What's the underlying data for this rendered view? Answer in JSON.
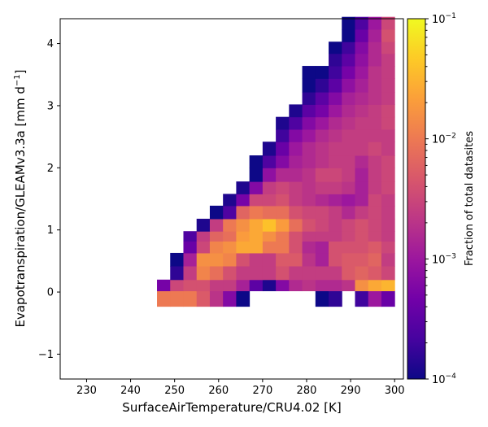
{
  "chart_data": {
    "type": "heatmap",
    "xlabel": "SurfaceAirTemperature/CRU4.02 [K]",
    "ylabel": "Evapotranspiration/GLEAMv3.3a [mm d$^{-1}$]",
    "ylabel_parts": {
      "main": "Evapotranspiration/GLEAMv3.3a [mm d",
      "sup": "−1",
      "end": "]"
    },
    "xlim": [
      224.0,
      302.0
    ],
    "ylim": [
      -1.4,
      4.4
    ],
    "xticks": [
      230,
      240,
      250,
      260,
      270,
      280,
      290,
      300
    ],
    "yticks": [
      -1,
      0,
      1,
      2,
      3,
      4
    ],
    "grid": false,
    "x_bin_start": 246.0,
    "x_bin_width": 3.0,
    "y_bins": [
      -0.23,
      0.02,
      0.2,
      0.42,
      0.63,
      0.82,
      0.98,
      1.18,
      1.39,
      1.58,
      1.78,
      2.0,
      2.2,
      2.42,
      2.62,
      2.82,
      3.02,
      3.22,
      3.44,
      3.64,
      3.84,
      4.03,
      4.23,
      4.43
    ],
    "log10_values": [
      [
        -2.0,
        -2.0,
        -2.0,
        -2.3,
        -2.7,
        -3.2,
        -4.0,
        null,
        null,
        null,
        null,
        null,
        -4.0,
        -3.8,
        null,
        -3.7,
        -3.0,
        -3.4
      ],
      [
        -3.3,
        -2.5,
        -2.4,
        -2.4,
        -2.6,
        -2.6,
        -2.9,
        -3.5,
        -3.9,
        -3.2,
        -2.8,
        -2.7,
        -2.8,
        -2.8,
        -2.7,
        -1.8,
        -1.6,
        -1.5
      ],
      [
        null,
        -3.8,
        -2.6,
        -1.9,
        -2.1,
        -2.4,
        -2.6,
        -2.6,
        -2.6,
        -2.4,
        -2.6,
        -2.6,
        -2.6,
        -2.6,
        -2.3,
        -2.2,
        -2.3,
        -2.5
      ],
      [
        null,
        -4.0,
        -2.9,
        -1.8,
        -1.8,
        -1.9,
        -2.4,
        -2.6,
        -2.6,
        -2.3,
        -2.3,
        -2.7,
        -2.9,
        -2.4,
        -2.3,
        -2.3,
        -2.2,
        -2.6
      ],
      [
        null,
        null,
        -3.4,
        -2.5,
        -1.9,
        -1.8,
        -1.6,
        -1.6,
        -2.0,
        -2.0,
        -2.4,
        -2.8,
        -2.9,
        -2.4,
        -2.4,
        -2.4,
        -2.3,
        -2.5
      ],
      [
        null,
        null,
        -3.6,
        -2.6,
        -2.2,
        -2.1,
        -1.7,
        -1.6,
        -1.8,
        -2.0,
        -2.4,
        -2.6,
        -2.6,
        -2.6,
        -2.5,
        -2.4,
        -2.5,
        -2.6
      ],
      [
        null,
        null,
        null,
        -3.9,
        -2.6,
        -2.0,
        -1.8,
        -1.6,
        -1.4,
        -1.7,
        -2.1,
        -2.4,
        -2.5,
        -2.6,
        -2.5,
        -2.4,
        -2.5,
        -2.6
      ],
      [
        null,
        null,
        null,
        null,
        -4.0,
        -3.6,
        -2.2,
        -2.0,
        -2.1,
        -2.1,
        -2.4,
        -2.5,
        -2.5,
        -2.6,
        -2.8,
        -2.6,
        -2.5,
        -2.6
      ],
      [
        null,
        null,
        null,
        null,
        null,
        -3.9,
        -3.3,
        -2.5,
        -2.5,
        -2.4,
        -2.6,
        -2.7,
        -2.8,
        -2.9,
        -3.0,
        -2.9,
        -2.5,
        -2.6
      ],
      [
        null,
        null,
        null,
        null,
        null,
        null,
        -3.9,
        -3.2,
        -2.6,
        -2.5,
        -2.6,
        -2.7,
        -2.6,
        -2.6,
        -2.7,
        -2.9,
        -2.6,
        -2.5
      ],
      [
        null,
        null,
        null,
        null,
        null,
        null,
        null,
        -4.0,
        -3.1,
        -2.8,
        -2.8,
        -2.7,
        -2.5,
        -2.5,
        -2.6,
        -2.9,
        -2.6,
        -2.5
      ],
      [
        null,
        null,
        null,
        null,
        null,
        null,
        null,
        -4.0,
        -3.6,
        -3.2,
        -2.9,
        -2.8,
        -2.7,
        -2.6,
        -2.6,
        -2.8,
        -2.6,
        -2.5
      ],
      [
        null,
        null,
        null,
        null,
        null,
        null,
        null,
        null,
        -3.9,
        -3.4,
        -3.0,
        -2.8,
        -2.7,
        -2.6,
        -2.6,
        -2.6,
        -2.5,
        -2.6
      ],
      [
        null,
        null,
        null,
        null,
        null,
        null,
        null,
        null,
        null,
        -3.7,
        -3.2,
        -3.0,
        -2.8,
        -2.7,
        -2.6,
        -2.6,
        -2.6,
        -2.6
      ],
      [
        null,
        null,
        null,
        null,
        null,
        null,
        null,
        null,
        null,
        -3.9,
        -3.6,
        -3.2,
        -3.0,
        -2.8,
        -2.7,
        -2.6,
        -2.6,
        -2.5
      ],
      [
        null,
        null,
        null,
        null,
        null,
        null,
        null,
        null,
        null,
        null,
        -3.9,
        -3.5,
        -3.3,
        -3.0,
        -2.8,
        -2.7,
        -2.6,
        -2.5
      ],
      [
        null,
        null,
        null,
        null,
        null,
        null,
        null,
        null,
        null,
        null,
        null,
        -3.8,
        -3.5,
        -3.2,
        -2.9,
        -2.8,
        -2.7,
        -2.6
      ],
      [
        null,
        null,
        null,
        null,
        null,
        null,
        null,
        null,
        null,
        null,
        null,
        -4.0,
        -3.8,
        -3.5,
        -3.1,
        -2.9,
        -2.7,
        -2.6
      ],
      [
        null,
        null,
        null,
        null,
        null,
        null,
        null,
        null,
        null,
        null,
        null,
        -4.0,
        -4.0,
        -3.7,
        -3.3,
        -3.0,
        -2.7,
        -2.6
      ],
      [
        null,
        null,
        null,
        null,
        null,
        null,
        null,
        null,
        null,
        null,
        null,
        null,
        null,
        -3.8,
        -3.5,
        -3.1,
        -2.8,
        -2.6
      ],
      [
        null,
        null,
        null,
        null,
        null,
        null,
        null,
        null,
        null,
        null,
        null,
        null,
        null,
        -4.0,
        -3.7,
        -3.2,
        -2.8,
        -2.5
      ],
      [
        null,
        null,
        null,
        null,
        null,
        null,
        null,
        null,
        null,
        null,
        null,
        null,
        null,
        null,
        -4.0,
        -3.4,
        -2.9,
        -2.4
      ],
      [
        null,
        null,
        null,
        null,
        null,
        null,
        null,
        null,
        null,
        null,
        null,
        null,
        null,
        null,
        -4.0,
        -3.6,
        -3.0,
        -2.5
      ]
    ],
    "colorbar": {
      "label": "Fraction of total datasites",
      "scale": "log",
      "range": [
        0.0001,
        0.1
      ],
      "colormap": "plasma",
      "ticks": [
        {
          "exp": -4,
          "base": "10",
          "sup": "−4"
        },
        {
          "exp": -3,
          "base": "10",
          "sup": "−3"
        },
        {
          "exp": -2,
          "base": "10",
          "sup": "−2"
        },
        {
          "exp": -1,
          "base": "10",
          "sup": "−1"
        }
      ]
    }
  },
  "colors": {
    "plasma": [
      "#0d0887",
      "#46039f",
      "#7201a8",
      "#9c179e",
      "#bd3786",
      "#d8576b",
      "#ed7953",
      "#fb9f3a",
      "#fdca26",
      "#f0f921"
    ]
  }
}
